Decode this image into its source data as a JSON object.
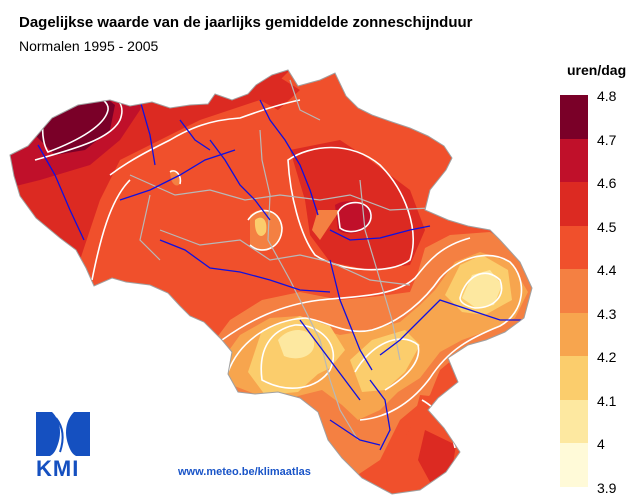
{
  "header": {
    "title": "Dagelijkse waarde van de jaarlijks gemiddelde zonneschijnduur",
    "subtitle": "Normalen 1995 - 2005"
  },
  "legend": {
    "unit": "uren/dag",
    "labels": [
      "4.8",
      "4.7",
      "4.6",
      "4.5",
      "4.4",
      "4.3",
      "4.2",
      "4.1",
      "4",
      "3.9"
    ],
    "colors": [
      "#7a0028",
      "#c0102a",
      "#dc2a22",
      "#f0502c",
      "#f48042",
      "#f7a54e",
      "#fbcd6c",
      "#fde8a0",
      "#fffad8"
    ]
  },
  "footer": {
    "logo_text": "KMI",
    "link": "www.meteo.be/klimaatlas"
  },
  "colors": {
    "border": "#b8b8b8",
    "rivers": "#1010e0",
    "isolines": "#ffffff"
  }
}
